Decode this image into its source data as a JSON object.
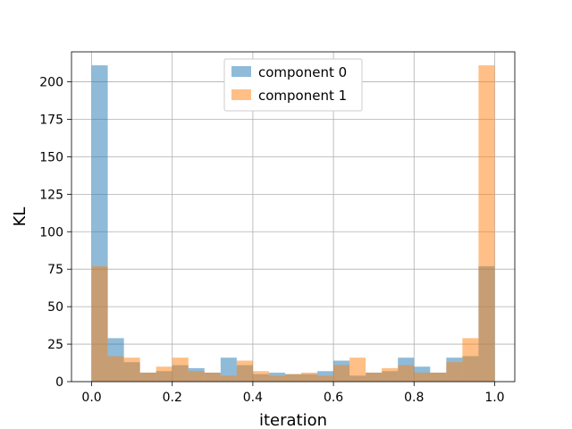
{
  "chart_data": {
    "type": "bar",
    "subtype": "overlapping-histogram",
    "title": "",
    "xlabel": "iteration",
    "ylabel": "KL",
    "xlim": [
      -0.05,
      1.05
    ],
    "ylim": [
      0,
      220
    ],
    "xticks": [
      "0.0",
      "0.2",
      "0.4",
      "0.6",
      "0.8",
      "1.0"
    ],
    "yticks": [
      "0",
      "25",
      "50",
      "75",
      "100",
      "125",
      "150",
      "175",
      "200"
    ],
    "grid": true,
    "legend_position": "top-center",
    "bin_edges": [
      0.0,
      0.04,
      0.08,
      0.12,
      0.16,
      0.2,
      0.24,
      0.28,
      0.32,
      0.36,
      0.4,
      0.44,
      0.48,
      0.52,
      0.56,
      0.6,
      0.64,
      0.68,
      0.72,
      0.76,
      0.8,
      0.84,
      0.88,
      0.92,
      0.96,
      1.0
    ],
    "series": [
      {
        "name": "component 0",
        "color": "#1f77b4",
        "values": [
          211,
          29,
          13,
          6,
          7,
          11,
          9,
          6,
          16,
          11,
          5,
          6,
          5,
          5,
          7,
          14,
          4,
          6,
          7,
          16,
          10,
          6,
          16,
          17,
          77
        ]
      },
      {
        "name": "component 1",
        "color": "#ff7f0e",
        "values": [
          77,
          17,
          16,
          6,
          10,
          16,
          7,
          6,
          4,
          14,
          7,
          4,
          5,
          6,
          4,
          11,
          16,
          6,
          9,
          11,
          6,
          6,
          13,
          29,
          211
        ]
      }
    ]
  }
}
